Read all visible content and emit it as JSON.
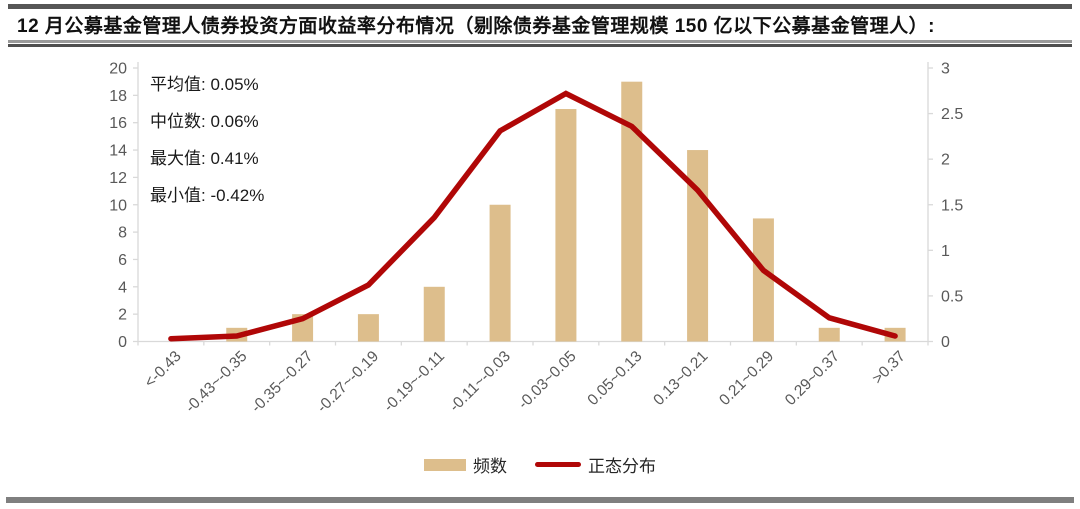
{
  "header": {
    "title": "12 月公募基金管理人债券投资方面收益率分布情况（剔除债券基金管理规模 150 亿以下公募基金管理人）:"
  },
  "annotation": {
    "lines": [
      "平均值: 0.05%",
      "中位数: 0.06%",
      "最大值: 0.41%",
      "最小值: -0.42%"
    ]
  },
  "legend": {
    "items": [
      {
        "label": "频数",
        "swatch": "bar",
        "color": "#ddbe8c"
      },
      {
        "label": "正态分布",
        "swatch": "line",
        "color": "#b00707"
      }
    ],
    "position": "bottom-center"
  },
  "colors": {
    "bar_fill": "#ddbe8c",
    "line_stroke": "#b00707",
    "axis_line": "#d9d9d9",
    "tick_text": "#595959",
    "header_bar": "#565656",
    "footer_bar": "#7f7f7f"
  },
  "chart_data": {
    "type": "bar",
    "subtype": "histogram with normal distribution overlay line",
    "categories": [
      "<-0.43",
      "-0.43~-0.35",
      "-0.35~-0.27",
      "-0.27~-0.19",
      "-0.19~-0.11",
      "-0.11~-0.03",
      "-0.03~0.05",
      "0.05~0.13",
      "0.13~0.21",
      "0.21~0.29",
      "0.29~0.37",
      ">0.37"
    ],
    "series": [
      {
        "name": "频数",
        "type": "bar",
        "y_axis": "left",
        "color": "#ddbe8c",
        "values": [
          0,
          1,
          2,
          2,
          4,
          10,
          17,
          19,
          14,
          9,
          1,
          1
        ]
      },
      {
        "name": "正态分布",
        "type": "line",
        "y_axis": "right",
        "color": "#b00707",
        "values": [
          0.03,
          0.06,
          0.25,
          0.62,
          1.36,
          2.31,
          2.72,
          2.36,
          1.66,
          0.78,
          0.26,
          0.06
        ]
      }
    ],
    "left_axis": {
      "min": 0,
      "max": 20,
      "ticks": [
        0,
        2,
        4,
        6,
        8,
        10,
        12,
        14,
        16,
        18,
        20
      ]
    },
    "right_axis": {
      "min": 0,
      "max": 3,
      "ticks": [
        0,
        0.5,
        1,
        1.5,
        2,
        2.5,
        3
      ]
    },
    "grid": false,
    "title": "",
    "xlabel": "",
    "ylabel_left": "",
    "ylabel_right": "",
    "stats": {
      "mean": "0.05%",
      "median": "0.06%",
      "max": "0.41%",
      "min": "-0.42%"
    }
  }
}
